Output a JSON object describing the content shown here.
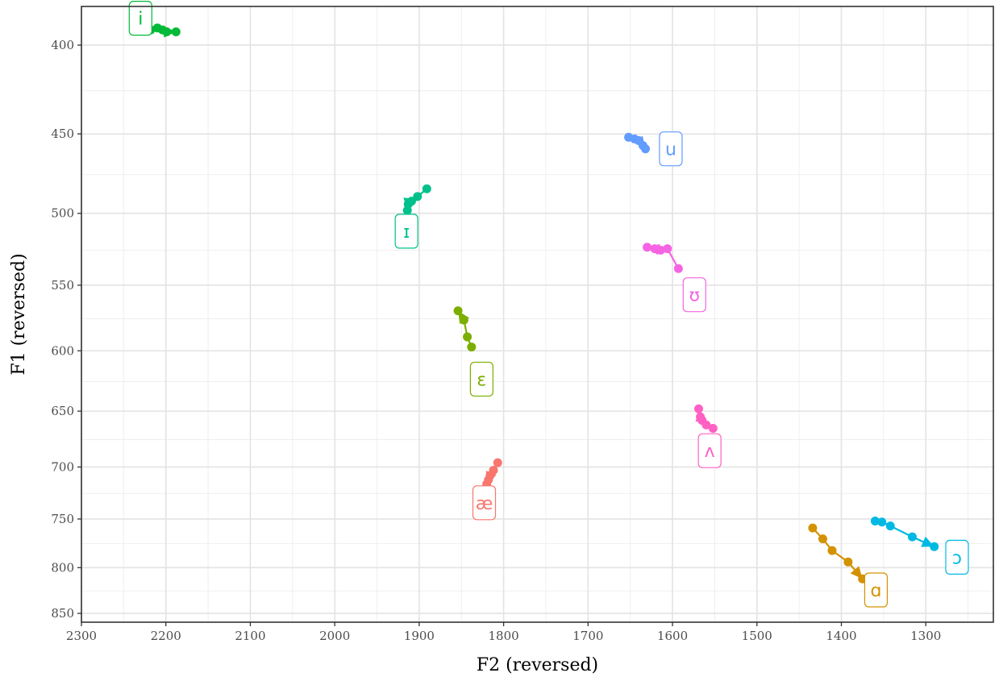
{
  "chart_data": {
    "type": "scatter",
    "title": "",
    "xlabel": "F2 (reversed)",
    "ylabel": "F1 (reversed)",
    "x_reversed": true,
    "y_reversed": true,
    "y_scale": "log",
    "xlim": [
      2300,
      1220
    ],
    "ylim": [
      380,
      860
    ],
    "x_ticks": [
      2300,
      2200,
      2100,
      2000,
      1900,
      1800,
      1700,
      1600,
      1500,
      1400,
      1300
    ],
    "x_tick_labels": [
      "2300",
      "2200",
      "2100",
      "2000",
      "1900",
      "1800",
      "1700",
      "1600",
      "1500",
      "1400",
      "1300"
    ],
    "y_ticks": [
      400,
      450,
      500,
      550,
      600,
      650,
      700,
      750,
      800,
      850
    ],
    "y_tick_labels": [
      "400",
      "450",
      "500",
      "550",
      "600",
      "650",
      "700",
      "750",
      "800",
      "850"
    ],
    "grid": true,
    "series": [
      {
        "name": "i",
        "color": "#00BA38",
        "points": [
          [
            2218,
            392
          ],
          [
            2210,
            391
          ],
          [
            2204,
            392
          ],
          [
            2199,
            393
          ],
          [
            2188,
            393
          ]
        ],
        "label_pos": [
          2230,
          386
        ]
      },
      {
        "name": "ɪ",
        "color": "#00C08B",
        "points": [
          [
            1891,
            484
          ],
          [
            1902,
            489
          ],
          [
            1909,
            492
          ],
          [
            1913,
            494
          ],
          [
            1914,
            498
          ]
        ],
        "label_pos": [
          1915,
          512
        ]
      },
      {
        "name": "u",
        "color": "#619CFF",
        "points": [
          [
            1652,
            452
          ],
          [
            1645,
            453
          ],
          [
            1640,
            454
          ],
          [
            1635,
            457
          ],
          [
            1632,
            459
          ]
        ],
        "label_pos": [
          1602,
          459
        ]
      },
      {
        "name": "ʊ",
        "color": "#F564E3",
        "points": [
          [
            1593,
            538
          ],
          [
            1606,
            524
          ],
          [
            1614,
            525
          ],
          [
            1621,
            524
          ],
          [
            1630,
            523
          ]
        ],
        "label_pos": [
          1574,
          557
        ]
      },
      {
        "name": "ɛ",
        "color": "#7CAE00",
        "points": [
          [
            1838,
            597
          ],
          [
            1843,
            589
          ],
          [
            1847,
            576
          ],
          [
            1854,
            569
          ]
        ],
        "label_pos": [
          1826,
          623
        ]
      },
      {
        "name": "ʌ",
        "color": "#FF61C3",
        "points": [
          [
            1552,
            665
          ],
          [
            1560,
            662
          ],
          [
            1565,
            658
          ],
          [
            1567,
            655
          ],
          [
            1569,
            648
          ]
        ],
        "label_pos": [
          1556,
          685
        ]
      },
      {
        "name": "æ",
        "color": "#F8766D",
        "points": [
          [
            1807,
            696
          ],
          [
            1812,
            703
          ],
          [
            1816,
            708
          ],
          [
            1818,
            712
          ],
          [
            1820,
            716
          ]
        ],
        "label_pos": [
          1823,
          734
        ]
      },
      {
        "name": "ɑ",
        "color": "#D39200",
        "points": [
          [
            1434,
            759
          ],
          [
            1422,
            770
          ],
          [
            1411,
            782
          ],
          [
            1392,
            794
          ],
          [
            1375,
            812
          ]
        ],
        "label_pos": [
          1359,
          824
        ]
      },
      {
        "name": "ɔ",
        "color": "#00B9E3",
        "points": [
          [
            1360,
            752
          ],
          [
            1352,
            753
          ],
          [
            1342,
            757
          ],
          [
            1316,
            768
          ],
          [
            1290,
            778
          ]
        ],
        "label_pos": [
          1263,
          789
        ]
      }
    ]
  }
}
